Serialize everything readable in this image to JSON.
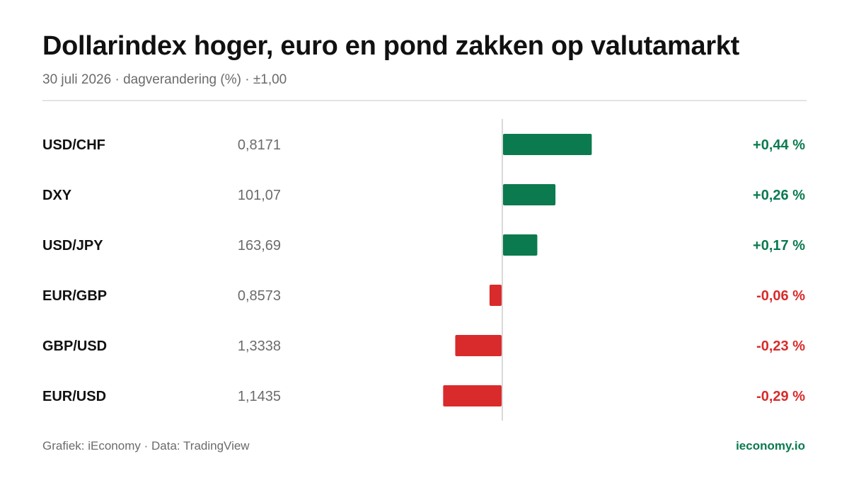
{
  "header": {
    "title": "Dollarindex hoger, euro en pond zakken op valutamarkt",
    "subtitle": "30 juli 2026 · dagverandering (%) · ±1,00"
  },
  "footer": {
    "source": "Grafiek: iEconomy · Data: TradingView",
    "brand": "ieconomy.io"
  },
  "colors": {
    "positive": "#0b7a4f",
    "negative": "#d92b2b",
    "axis": "#d9d9d9",
    "label": "#111111",
    "value": "#6b6b6b"
  },
  "chart_data": {
    "type": "bar",
    "orientation": "horizontal",
    "xlim": [
      -1.0,
      1.0
    ],
    "categories": [
      "USD/CHF",
      "DXY",
      "USD/JPY",
      "EUR/GBP",
      "GBP/USD",
      "EUR/USD"
    ],
    "quotes": [
      "0,8171",
      "101,07",
      "163,69",
      "0,8573",
      "1,3338",
      "1,1435"
    ],
    "values": [
      0.44,
      0.26,
      0.17,
      -0.06,
      -0.23,
      -0.29
    ],
    "value_labels": [
      "+0,44 %",
      "+0,26 %",
      "+0,17 %",
      "-0,06 %",
      "-0,23 %",
      "-0,29 %"
    ]
  }
}
